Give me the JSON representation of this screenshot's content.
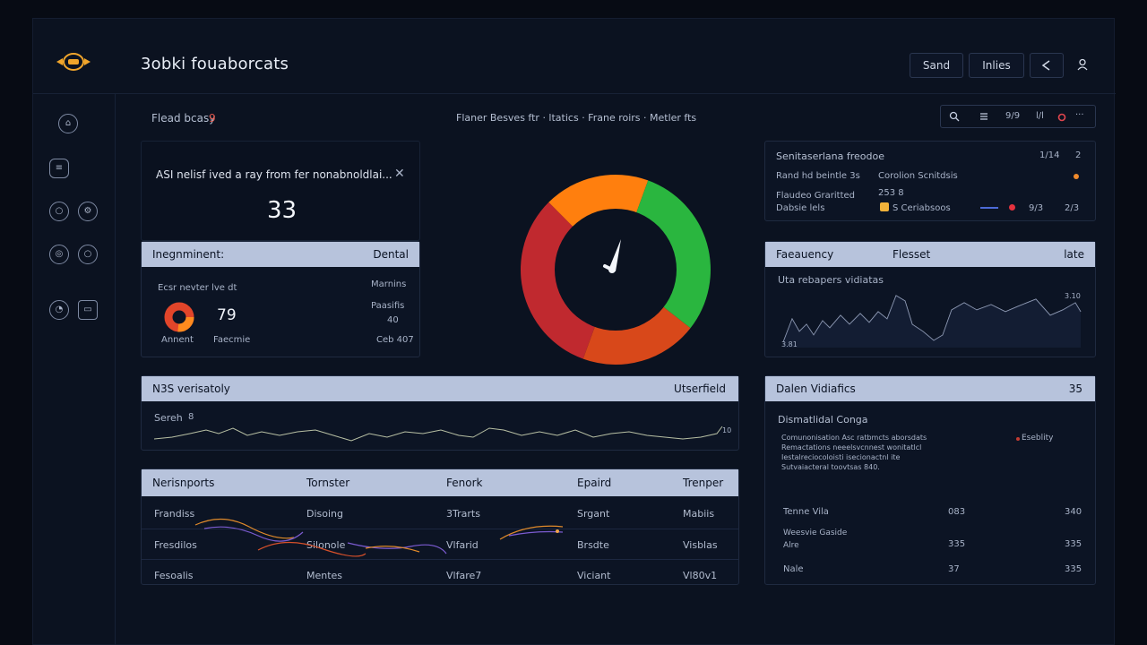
{
  "app": {
    "title": "3obki fouaborcats"
  },
  "topbar": {
    "buttons": [
      "Sand",
      "Inlies"
    ]
  },
  "header_row": {
    "left_label": "Flead bcasy",
    "left_value": "9",
    "center_tabs": "Flaner Besves ftr  ·  ltatics  ·  Frane  roirs  ·  Metler fts",
    "right_labels": [
      "9/9",
      "l/l"
    ]
  },
  "alert_card": {
    "title": "ASI nelisf ived a ray from fer nonabnoldlai...",
    "value": "33"
  },
  "incident_card": {
    "head_left": "Inegnminent:",
    "head_right": "Dental",
    "sub": "Ecsr nevter lve dt",
    "right_labels": [
      "Marnins",
      "Paasifis",
      "40",
      "Ceb 407"
    ],
    "donut_label": "Annent",
    "value": "79",
    "value_label": "Faecmie"
  },
  "status_card": {
    "title": "Senitaserlana freodoe",
    "right": "1/14",
    "right2": "2",
    "row1_left": "Rand hd beintle 3s",
    "row1_mid": "Corolion Scnitdsis",
    "row2_left": "Flaudeo Graritted",
    "row2_mid": "253 8",
    "row3_left": "Dabsie lels",
    "row3_mid": "S Ceriabsoos",
    "row3_right": "9/3",
    "row3_right2": "2/3"
  },
  "frequency_card": {
    "head_left": "Faeauency",
    "head_mid": "Flesset",
    "head_right": "late",
    "sub": "Uta rebapers vidiatas",
    "tick_a": "3.81",
    "tick_b": "3.10"
  },
  "nss_card": {
    "head_left": "N3S verisatoly",
    "head_right": "Utserfield",
    "sub": "Sereh",
    "sub_value": "8",
    "tick": "10"
  },
  "dalen_card": {
    "head_left": "Dalen Vidiafics",
    "head_right": "35",
    "sub": "Dismatlidal Conga",
    "text_lines": [
      "Comunonisation Asc ratbmcts aborsdats",
      "Remactations neeelsvcnnest wonitatlcl",
      "Iestalreciocoloisti isecionactnl ite",
      "Sutvaiacteral toovtsas 840."
    ],
    "side_label": "Eseblity",
    "rows": [
      {
        "a": "Tenne Vila",
        "b": "083",
        "c": "340"
      },
      {
        "a": "Weesvie Gaside",
        "b": "",
        "c": ""
      },
      {
        "a": "Alre",
        "b": "335",
        "c": "335"
      },
      {
        "a": "Nale",
        "b": "37",
        "c": "335"
      }
    ]
  },
  "table": {
    "headers": [
      "Nerisnports",
      "Tornster",
      "Fenork",
      "Epaird",
      "Trenper"
    ],
    "rows": [
      [
        "Frandiss",
        "Disoing",
        "3Trarts",
        "Srgant",
        "Mabiis"
      ],
      [
        "Fresdilos",
        "Silonole",
        "Vlfarid",
        "Brsdte",
        "Visblas"
      ],
      [
        "Fesoalis",
        "Mentes",
        "Vlfare7",
        "Viciant",
        "Vl80v1"
      ]
    ]
  },
  "colors": {
    "gauge_red": "#c0292f",
    "gauge_orange": "#ff7f0e",
    "gauge_green": "#2ab63f",
    "gauge_orange_red": "#d8481a"
  },
  "gauge": {
    "levels": [
      0.32,
      0.18,
      0.3,
      0.2
    ]
  }
}
